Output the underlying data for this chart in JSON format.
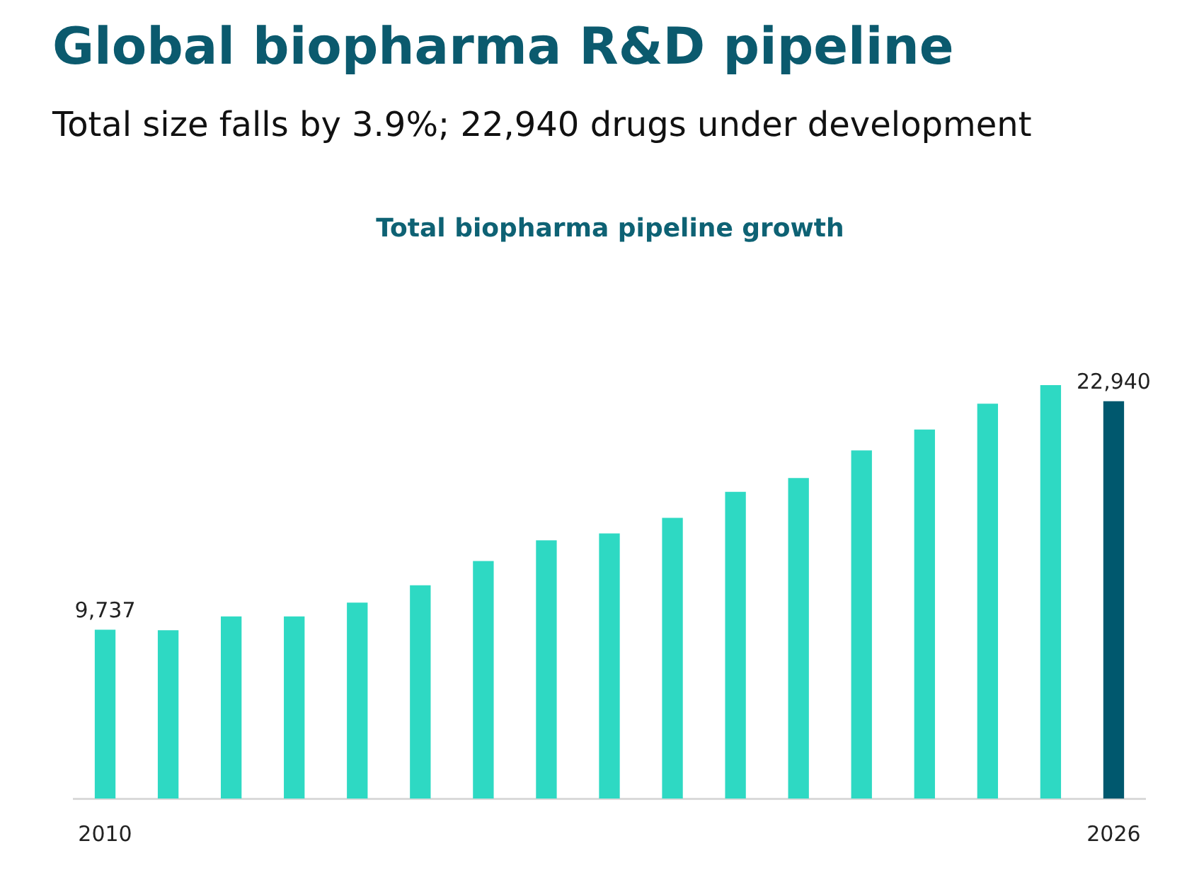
{
  "chart_data": {
    "type": "bar",
    "title": "Global biopharma R&D pipeline",
    "subtitle": "Total size falls by 3.9%; 22,940 drugs under development",
    "annotations": [
      "Total biopharma pipeline growth"
    ],
    "categories": [
      "2010",
      null,
      null,
      null,
      null,
      null,
      null,
      null,
      null,
      null,
      null,
      null,
      null,
      null,
      null,
      null,
      "2026"
    ],
    "values": [
      9737,
      9700,
      10500,
      10500,
      11300,
      12300,
      13700,
      14900,
      15300,
      16200,
      17700,
      18500,
      20100,
      21300,
      22800,
      23900,
      22940
    ],
    "colors": [
      "#2ed9c3",
      "#2ed9c3",
      "#2ed9c3",
      "#2ed9c3",
      "#2ed9c3",
      "#2ed9c3",
      "#2ed9c3",
      "#2ed9c3",
      "#2ed9c3",
      "#2ed9c3",
      "#2ed9c3",
      "#2ed9c3",
      "#2ed9c3",
      "#2ed9c3",
      "#2ed9c3",
      "#2ed9c3",
      "#00586e"
    ],
    "value_labels": [
      "9,737",
      null,
      null,
      null,
      null,
      null,
      null,
      null,
      null,
      null,
      null,
      null,
      null,
      null,
      null,
      null,
      "22,940"
    ]
  }
}
